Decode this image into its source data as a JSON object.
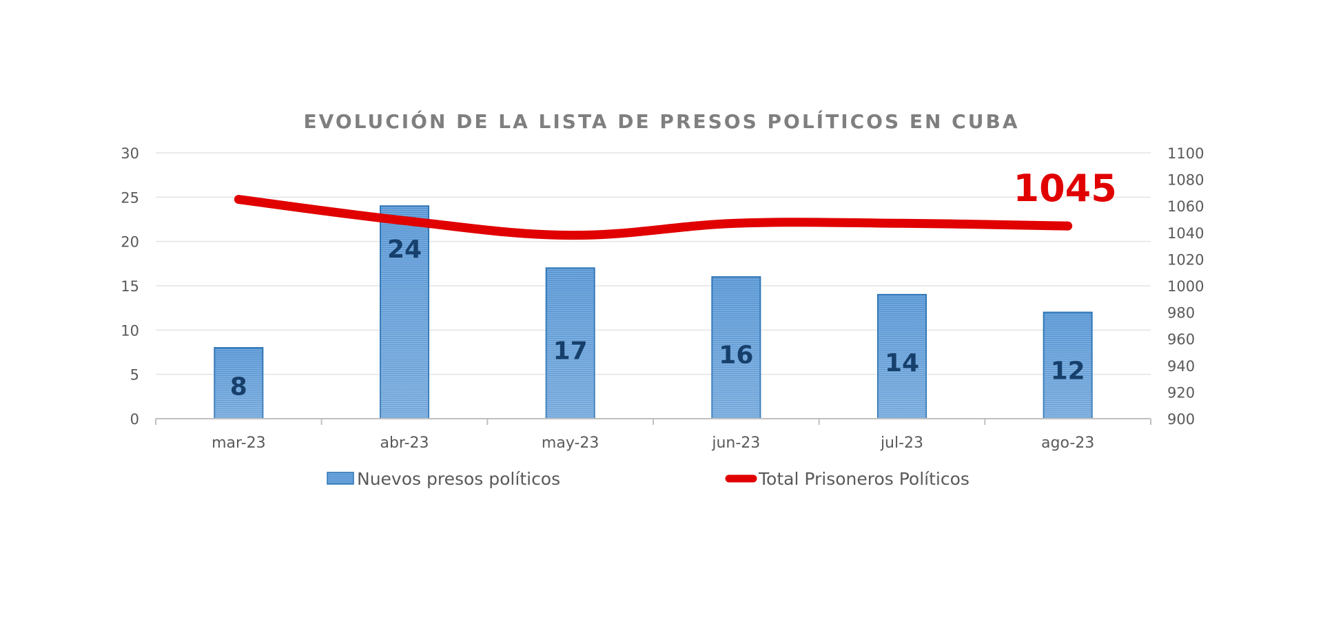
{
  "chart_data": {
    "type": "bar",
    "title": "EVOLUCIÓN DE LA LISTA DE PRESOS POLÍTICOS EN CUBA",
    "categories": [
      "mar-23",
      "abr-23",
      "may-23",
      "jun-23",
      "jul-23",
      "ago-23"
    ],
    "series": [
      {
        "name": "Nuevos presos políticos",
        "type": "bar",
        "axis": "left",
        "color": "#5b9bd5",
        "border_color": "#2e75b6",
        "label_color": "#173f6b",
        "values": [
          8,
          24,
          17,
          16,
          14,
          12
        ],
        "data_labels": [
          "8",
          "24",
          "17",
          "16",
          "14",
          "12"
        ]
      },
      {
        "name": "Total Prisioneros Políticos",
        "legend_label": "Total Prisoneros Políticos",
        "type": "line",
        "smooth": true,
        "axis": "right",
        "color": "#e00000",
        "values": [
          1065,
          1049,
          1038,
          1047,
          1047,
          1045
        ],
        "callout": {
          "index": 5,
          "text": "1045"
        }
      }
    ],
    "y_left": {
      "min": 0,
      "max": 30,
      "step": 5,
      "ticks": [
        "0",
        "5",
        "10",
        "15",
        "20",
        "25",
        "30"
      ]
    },
    "y_right": {
      "min": 900,
      "max": 1100,
      "step": 20,
      "ticks": [
        "900",
        "920",
        "940",
        "960",
        "980",
        "1000",
        "1020",
        "1040",
        "1060",
        "1080",
        "1100"
      ]
    },
    "xlabel": "",
    "ylabel": "",
    "grid": true,
    "legend_position": "bottom"
  }
}
